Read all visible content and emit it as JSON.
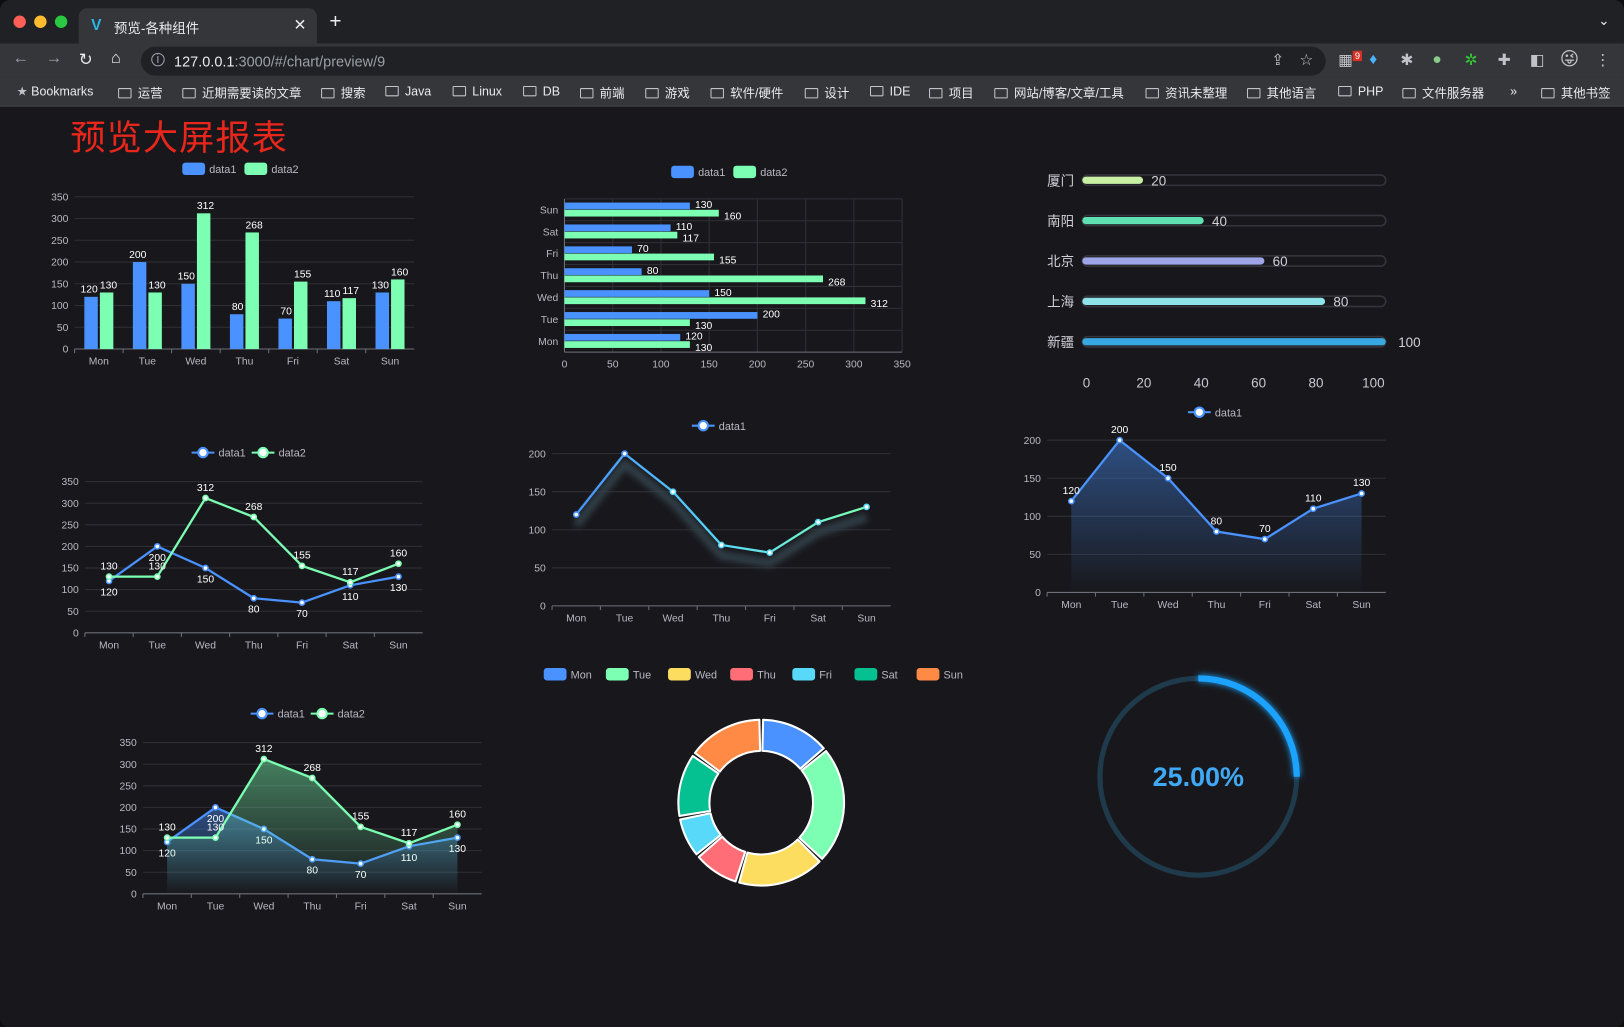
{
  "browser": {
    "tab_title": "预览-各种组件",
    "url_host": "127.0.0.1",
    "url_rest": ":3000/#/chart/preview/9",
    "extension_badge": "9",
    "bookmarks": [
      "Bookmarks",
      "运营",
      "近期需要读的文章",
      "搜索",
      "Java",
      "Linux",
      "DB",
      "前端",
      "游戏",
      "软件/硬件",
      "设计",
      "IDE",
      "项目",
      "网站/博客/文章/工具",
      "资讯未整理",
      "其他语言",
      "PHP",
      "文件服务器"
    ],
    "bookmarks_more": "»",
    "other_bookmarks": "其他书签"
  },
  "page": {
    "title": "预览大屏报表"
  },
  "colors": {
    "data1": "#4992ff",
    "data2": "#7cffb2",
    "title": "#e8261b",
    "gauge": "#1aa3ff"
  },
  "chart_data": [
    {
      "type": "bar",
      "orientation": "vertical",
      "categories": [
        "Mon",
        "Tue",
        "Wed",
        "Thu",
        "Fri",
        "Sat",
        "Sun"
      ],
      "ylim": [
        0,
        350
      ],
      "yticks": [
        0,
        50,
        100,
        150,
        200,
        250,
        300,
        350
      ],
      "legend": "top",
      "series": [
        {
          "name": "data1",
          "values": [
            120,
            200,
            150,
            80,
            70,
            110,
            130
          ]
        },
        {
          "name": "data2",
          "values": [
            130,
            130,
            312,
            268,
            155,
            117,
            160
          ]
        }
      ]
    },
    {
      "type": "bar",
      "orientation": "horizontal",
      "categories": [
        "Mon",
        "Tue",
        "Wed",
        "Thu",
        "Fri",
        "Sat",
        "Sun"
      ],
      "xlim": [
        0,
        350
      ],
      "xticks": [
        0,
        50,
        100,
        150,
        200,
        250,
        300,
        350
      ],
      "legend": "top",
      "series": [
        {
          "name": "data1",
          "values": [
            120,
            200,
            150,
            80,
            70,
            110,
            130
          ]
        },
        {
          "name": "data2",
          "values": [
            130,
            130,
            312,
            268,
            155,
            117,
            160
          ]
        }
      ]
    },
    {
      "type": "bar",
      "orientation": "horizontal-progress",
      "categories": [
        "厦门",
        "南阳",
        "北京",
        "上海",
        "新疆"
      ],
      "values": [
        20,
        40,
        60,
        80,
        100
      ],
      "xlim": [
        0,
        100
      ],
      "xticks": [
        0,
        20,
        40,
        60,
        80,
        100
      ],
      "colors": [
        "#c7f0a4",
        "#5ee0b0",
        "#9fa6e8",
        "#8ee3e8",
        "#37a8e0"
      ]
    },
    {
      "type": "line",
      "categories": [
        "Mon",
        "Tue",
        "Wed",
        "Thu",
        "Fri",
        "Sat",
        "Sun"
      ],
      "ylim": [
        0,
        350
      ],
      "yticks": [
        0,
        50,
        100,
        150,
        200,
        250,
        300,
        350
      ],
      "legend": "top",
      "labels": true,
      "series": [
        {
          "name": "data1",
          "values": [
            120,
            200,
            150,
            80,
            70,
            110,
            130
          ]
        },
        {
          "name": "data2",
          "values": [
            130,
            130,
            312,
            268,
            155,
            117,
            160
          ]
        }
      ]
    },
    {
      "type": "line",
      "categories": [
        "Mon",
        "Tue",
        "Wed",
        "Thu",
        "Fri",
        "Sat",
        "Sun"
      ],
      "ylim": [
        0,
        200
      ],
      "yticks": [
        0,
        50,
        100,
        150,
        200
      ],
      "legend": "top",
      "labels": false,
      "series": [
        {
          "name": "data1",
          "values": [
            120,
            200,
            150,
            80,
            70,
            110,
            130
          ]
        }
      ]
    },
    {
      "type": "area",
      "categories": [
        "Mon",
        "Tue",
        "Wed",
        "Thu",
        "Fri",
        "Sat",
        "Sun"
      ],
      "ylim": [
        0,
        200
      ],
      "yticks": [
        0,
        50,
        100,
        150,
        200
      ],
      "legend": "top",
      "labels": true,
      "series": [
        {
          "name": "data1",
          "values": [
            120,
            200,
            150,
            80,
            70,
            110,
            130
          ]
        }
      ]
    },
    {
      "type": "area",
      "categories": [
        "Mon",
        "Tue",
        "Wed",
        "Thu",
        "Fri",
        "Sat",
        "Sun"
      ],
      "ylim": [
        0,
        350
      ],
      "yticks": [
        0,
        50,
        100,
        150,
        200,
        250,
        300,
        350
      ],
      "legend": "top",
      "labels": true,
      "series": [
        {
          "name": "data1",
          "values": [
            120,
            200,
            150,
            80,
            70,
            110,
            130
          ]
        },
        {
          "name": "data2",
          "values": [
            130,
            130,
            312,
            268,
            155,
            117,
            160
          ]
        }
      ]
    },
    {
      "type": "pie",
      "donut": true,
      "legend": "top",
      "categories": [
        "Mon",
        "Tue",
        "Wed",
        "Thu",
        "Fri",
        "Sat",
        "Sun"
      ],
      "values": [
        120,
        200,
        150,
        80,
        70,
        110,
        130
      ],
      "colors": [
        "#4992ff",
        "#7cffb2",
        "#fddd60",
        "#ff6e76",
        "#58d9f9",
        "#05c091",
        "#ff8a45"
      ]
    },
    {
      "type": "gauge",
      "value": 0.25,
      "label": "25.00%"
    }
  ]
}
